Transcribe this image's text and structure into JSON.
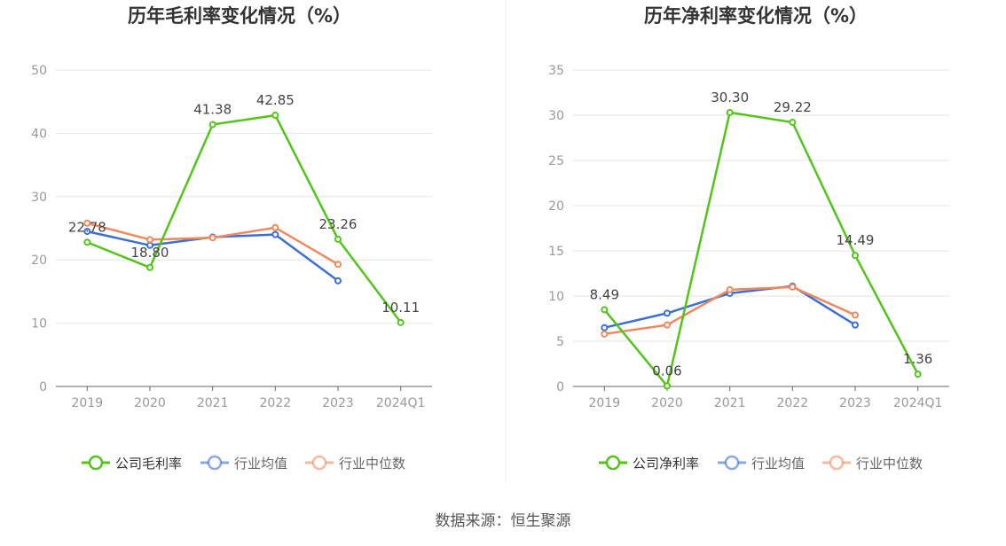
{
  "source_label": "数据来源：恒生聚源",
  "colors": {
    "company": "#52c41a",
    "industry_avg": "#3b6fd6",
    "industry_median": "#f0885e",
    "grid": "#e6e6e6",
    "axis_text": "#999999",
    "title_text": "#333333",
    "label_text": "#444444"
  },
  "chart_data": [
    {
      "type": "line",
      "title": "历年毛利率变化情况（%）",
      "categories": [
        "2019",
        "2020",
        "2021",
        "2022",
        "2023",
        "2024Q1"
      ],
      "ylim": [
        0,
        50
      ],
      "yticks": [
        0,
        10,
        20,
        30,
        40,
        50
      ],
      "grid": true,
      "legend_position": "bottom",
      "series": [
        {
          "name": "公司毛利率",
          "key": "company",
          "values": [
            22.78,
            18.8,
            41.38,
            42.85,
            23.26,
            10.11
          ],
          "labels": [
            "22.78",
            "18.80",
            "41.38",
            "42.85",
            "23.26",
            "10.11"
          ]
        },
        {
          "name": "行业均值",
          "key": "industry_avg",
          "values": [
            24.5,
            22.3,
            23.6,
            24.0,
            16.7,
            null
          ]
        },
        {
          "name": "行业中位数",
          "key": "industry_median",
          "values": [
            25.8,
            23.2,
            23.5,
            25.1,
            19.3,
            null
          ]
        }
      ]
    },
    {
      "type": "line",
      "title": "历年净利率变化情况（%）",
      "categories": [
        "2019",
        "2020",
        "2021",
        "2022",
        "2023",
        "2024Q1"
      ],
      "ylim": [
        0,
        35
      ],
      "yticks": [
        0,
        5,
        10,
        15,
        20,
        25,
        30,
        35
      ],
      "grid": true,
      "legend_position": "bottom",
      "series": [
        {
          "name": "公司净利率",
          "key": "company",
          "values": [
            8.49,
            0.06,
            30.3,
            29.22,
            14.49,
            1.36
          ],
          "labels": [
            "8.49",
            "0.06",
            "30.30",
            "29.22",
            "14.49",
            "1.36"
          ]
        },
        {
          "name": "行业均值",
          "key": "industry_avg",
          "values": [
            6.5,
            8.1,
            10.3,
            11.1,
            6.8,
            null
          ]
        },
        {
          "name": "行业中位数",
          "key": "industry_median",
          "values": [
            5.8,
            6.8,
            10.7,
            11.0,
            7.9,
            null
          ]
        }
      ]
    }
  ]
}
